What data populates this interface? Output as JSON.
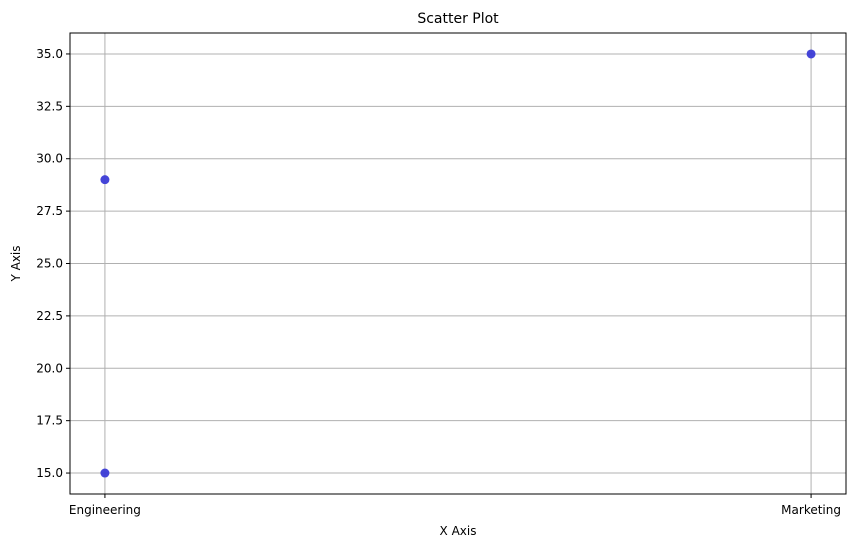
{
  "chart_data": {
    "type": "scatter",
    "title": "Scatter Plot",
    "xlabel": "X Axis",
    "ylabel": "Y Axis",
    "categories": [
      "Engineering",
      "Marketing"
    ],
    "points": [
      {
        "x": "Engineering",
        "y": 29
      },
      {
        "x": "Engineering",
        "y": 15
      },
      {
        "x": "Marketing",
        "y": 35
      }
    ],
    "ylim": [
      14.0,
      36.0
    ],
    "yticks": [
      15.0,
      17.5,
      20.0,
      22.5,
      25.0,
      27.5,
      30.0,
      32.5,
      35.0
    ],
    "ytick_labels": [
      "15.0",
      "17.5",
      "20.0",
      "22.5",
      "25.0",
      "27.5",
      "30.0",
      "32.5",
      "35.0"
    ],
    "grid": true,
    "legend": "none",
    "marker_color": "#3b3bd6",
    "grid_color": "#b0b0b0"
  }
}
